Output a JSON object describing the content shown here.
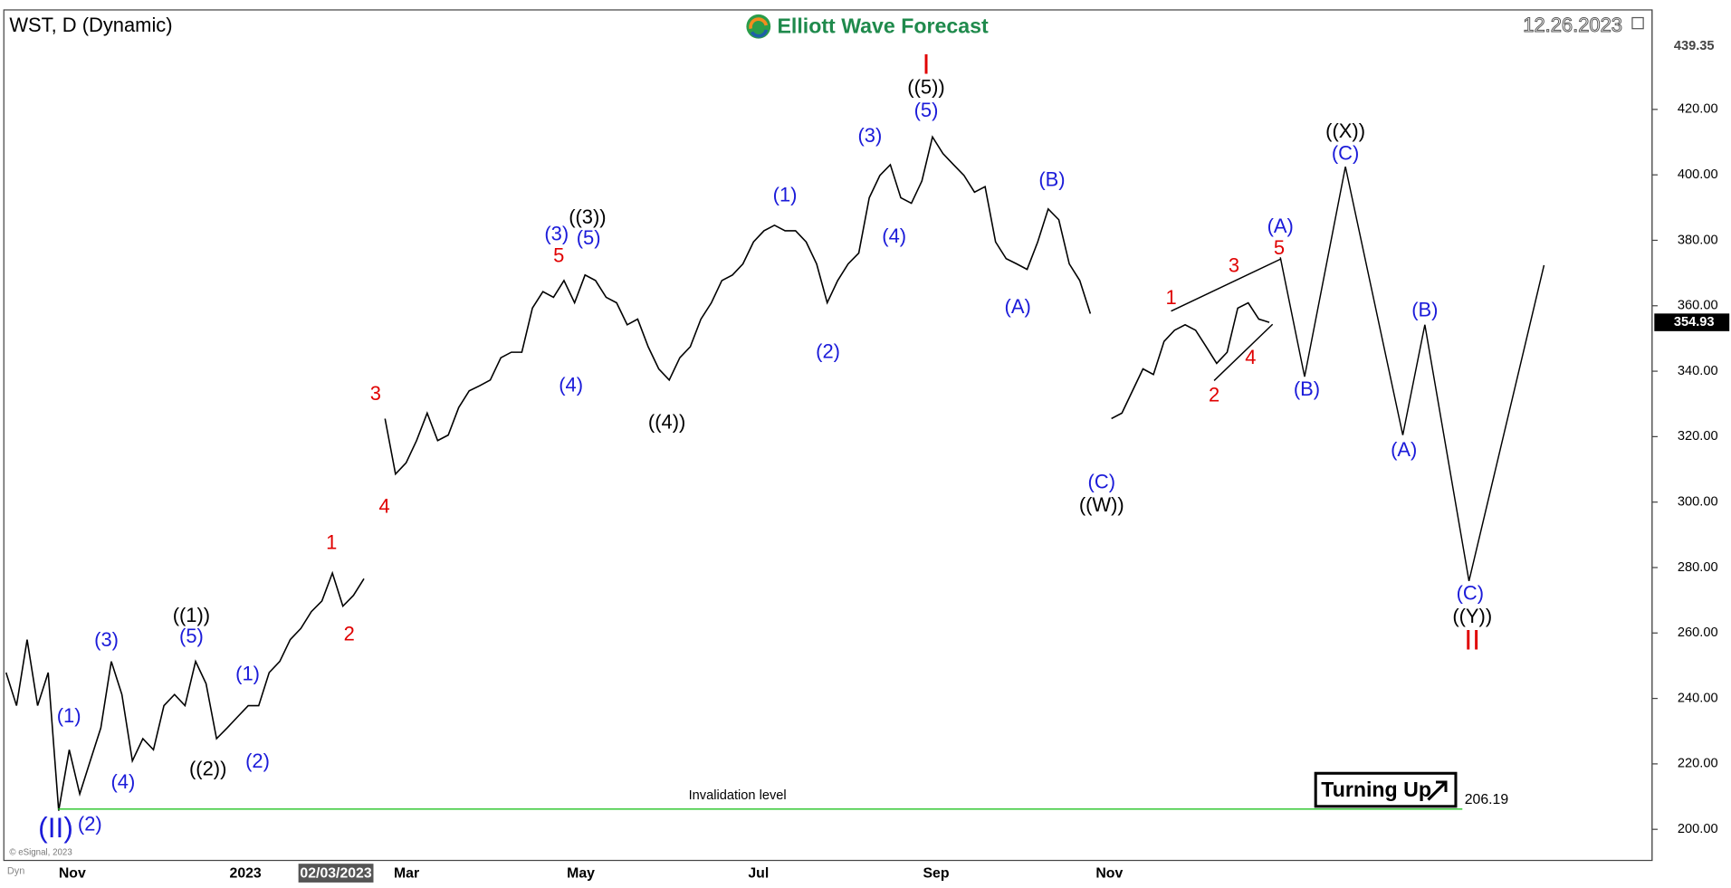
{
  "header": {
    "symbol": "WST, D (Dynamic)",
    "brand": "Elliott Wave Forecast",
    "date": "12.26.2023",
    "corner": "Dyn",
    "credit": "© eSignal, 2023",
    "badge": "Turning Up"
  },
  "chart_data": {
    "type": "line",
    "color": "#000000",
    "ylim": [
      190.5,
      450.4
    ],
    "yticks": [
      {
        "value": 200,
        "label": "200.00"
      },
      {
        "value": 220,
        "label": "220.00"
      },
      {
        "value": 240,
        "label": "240.00"
      },
      {
        "value": 260,
        "label": "260.00"
      },
      {
        "value": 280,
        "label": "280.00"
      },
      {
        "value": 300,
        "label": "300.00"
      },
      {
        "value": 320,
        "label": "320.00"
      },
      {
        "value": 340,
        "label": "340.00"
      },
      {
        "value": 360,
        "label": "360.00"
      },
      {
        "value": 380,
        "label": "380.00"
      },
      {
        "value": 400,
        "label": "400.00"
      },
      {
        "value": 420,
        "label": "420.00"
      }
    ],
    "x_labels": [
      "Nov",
      "2023",
      "02/03/2023",
      "Mar",
      "May",
      "Jul",
      "Sep",
      "Nov"
    ],
    "values": [
      247.9,
      237.8,
      258.0,
      237.8,
      247.9,
      205.7,
      224.3,
      210.8,
      220.9,
      231.0,
      251.3,
      241.2,
      220.9,
      227.7,
      224.3,
      237.8,
      241.2,
      237.8,
      251.3,
      244.5,
      227.7,
      231.0,
      234.4,
      237.8,
      237.8,
      247.9,
      251.3,
      258.0,
      261.4,
      266.5,
      269.8,
      278.3,
      268.2,
      271.5,
      276.6,
      null,
      325.5,
      308.6,
      312.0,
      318.8,
      327.2,
      318.8,
      320.5,
      328.9,
      334.0,
      335.6,
      337.3,
      344.1,
      345.8,
      345.8,
      359.3,
      364.3,
      362.6,
      367.7,
      360.9,
      369.4,
      367.7,
      362.6,
      360.9,
      354.2,
      355.9,
      347.5,
      340.7,
      337.3,
      344.1,
      347.5,
      355.9,
      360.9,
      367.7,
      369.4,
      372.8,
      379.5,
      382.9,
      384.6,
      382.9,
      382.9,
      379.5,
      372.8,
      360.9,
      367.7,
      372.8,
      376.1,
      393.0,
      399.8,
      403.1,
      393.0,
      391.3,
      398.1,
      411.6,
      406.5,
      403.1,
      399.8,
      394.7,
      396.4,
      379.5,
      374.4,
      372.8,
      371.1,
      379.5,
      389.6,
      386.3,
      372.8,
      367.7,
      357.6,
      null,
      325.5,
      327.2,
      334.0,
      340.7,
      339.0,
      349.1,
      352.5,
      354.2,
      352.5,
      347.5,
      342.4,
      345.8,
      359.3,
      360.9,
      355.9,
      354.93
    ],
    "last_price": 354.93,
    "high_level": 439.35,
    "invalidation": {
      "value": 206.19,
      "text": "Invalidation level",
      "color": "#22c322"
    },
    "projection": {
      "color": "#000000",
      "values": [
        374.8,
        338.3,
        402.5,
        320.5,
        354.2,
        275.9,
        372.4
      ]
    },
    "wave_labels": [
      {
        "text": "(II)",
        "color": "#1b1bd9"
      },
      {
        "text": "(1)",
        "color": "#1b1bd9"
      },
      {
        "text": "(2)",
        "color": "#1b1bd9"
      },
      {
        "text": "(3)",
        "color": "#1b1bd9"
      },
      {
        "text": "(4)",
        "color": "#1b1bd9"
      },
      {
        "text": "((1))",
        "color": "#000000"
      },
      {
        "text": "(5)",
        "color": "#1b1bd9"
      },
      {
        "text": "((2))",
        "color": "#000000"
      },
      {
        "text": "(1)",
        "color": "#1b1bd9"
      },
      {
        "text": "(2)",
        "color": "#1b1bd9"
      },
      {
        "text": "1",
        "color": "#e00000"
      },
      {
        "text": "2",
        "color": "#e00000"
      },
      {
        "text": "3",
        "color": "#e00000"
      },
      {
        "text": "4",
        "color": "#e00000"
      },
      {
        "text": "(3)",
        "color": "#1b1bd9"
      },
      {
        "text": "5",
        "color": "#e00000"
      },
      {
        "text": "((3))",
        "color": "#000000"
      },
      {
        "text": "(5)",
        "color": "#1b1bd9"
      },
      {
        "text": "(4)",
        "color": "#1b1bd9"
      },
      {
        "text": "((4))",
        "color": "#000000"
      },
      {
        "text": "(1)",
        "color": "#1b1bd9"
      },
      {
        "text": "(2)",
        "color": "#1b1bd9"
      },
      {
        "text": "(3)",
        "color": "#1b1bd9"
      },
      {
        "text": "(4)",
        "color": "#1b1bd9"
      },
      {
        "text": "I",
        "color": "#e00000"
      },
      {
        "text": "((5))",
        "color": "#000000"
      },
      {
        "text": "(5)",
        "color": "#1b1bd9"
      },
      {
        "text": "(B)",
        "color": "#1b1bd9"
      },
      {
        "text": "(A)",
        "color": "#1b1bd9"
      },
      {
        "text": "(C)",
        "color": "#1b1bd9"
      },
      {
        "text": "((W))",
        "color": "#000000"
      },
      {
        "text": "1",
        "color": "#e00000"
      },
      {
        "text": "2",
        "color": "#e00000"
      },
      {
        "text": "3",
        "color": "#e00000"
      },
      {
        "text": "4",
        "color": "#e00000"
      },
      {
        "text": "(A)",
        "color": "#1b1bd9"
      },
      {
        "text": "5",
        "color": "#e00000"
      },
      {
        "text": "(B)",
        "color": "#1b1bd9"
      },
      {
        "text": "((X))",
        "color": "#000000"
      },
      {
        "text": "(C)",
        "color": "#1b1bd9"
      },
      {
        "text": "(A)",
        "color": "#1b1bd9"
      },
      {
        "text": "(B)",
        "color": "#1b1bd9"
      },
      {
        "text": "(C)",
        "color": "#1b1bd9"
      },
      {
        "text": "((Y))",
        "color": "#000000"
      },
      {
        "text": "II",
        "color": "#e00000"
      }
    ]
  }
}
